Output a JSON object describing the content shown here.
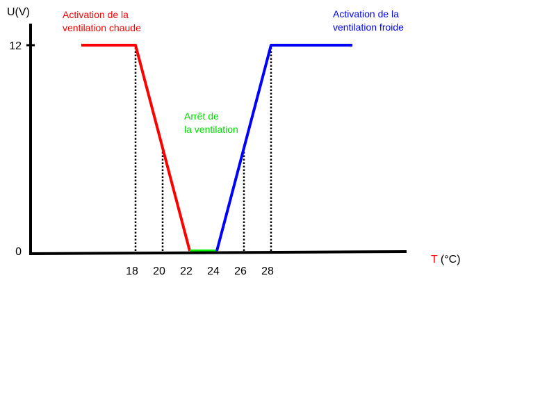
{
  "chart_data": {
    "type": "line",
    "title": "",
    "ylabel": "U(V)",
    "xlabel_prefix": "T",
    "xlabel_suffix": " (°C)",
    "y_ticks": [
      {
        "value": 12,
        "label": "12"
      },
      {
        "value": 0,
        "label": "0"
      }
    ],
    "x_ticks": [
      {
        "value": 18,
        "label": "18"
      },
      {
        "value": 20,
        "label": "20"
      },
      {
        "value": 22,
        "label": "22"
      },
      {
        "value": 24,
        "label": "24"
      },
      {
        "value": 26,
        "label": "26"
      },
      {
        "value": 28,
        "label": "28"
      }
    ],
    "dotted_guides_x": [
      18,
      20,
      22,
      26,
      28
    ],
    "segments": [
      {
        "color": "#ff0000",
        "points": [
          [
            14,
            12
          ],
          [
            18,
            12
          ],
          [
            22,
            0
          ]
        ]
      },
      {
        "color": "#00ee00",
        "points": [
          [
            22,
            0
          ],
          [
            24,
            0
          ]
        ]
      },
      {
        "color": "#0000ff",
        "points": [
          [
            24,
            0
          ],
          [
            28,
            12
          ],
          [
            34,
            12
          ]
        ]
      }
    ],
    "annotations": [
      {
        "lines": [
          "Activation de la",
          "ventilation chaude"
        ],
        "color": "#ff0000"
      },
      {
        "lines": [
          "Arrêt de",
          "la ventilation"
        ],
        "color": "#00dd00"
      },
      {
        "lines": [
          "Activation de la",
          "ventilation froide"
        ],
        "color": "#0000ff"
      }
    ],
    "colors": {
      "axis": "#000000",
      "xlabel_prefix": "#ff0000",
      "xlabel_suffix": "#000000"
    }
  }
}
